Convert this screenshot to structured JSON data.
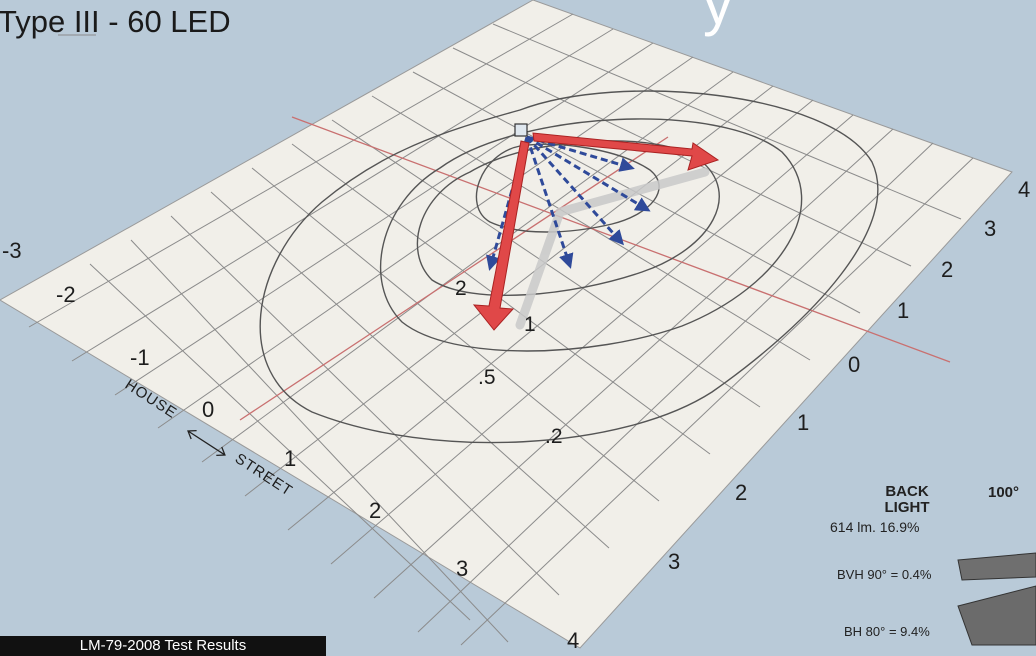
{
  "title": "Type III - 60 LED",
  "title_fragment": "y",
  "street_axis_labels": [
    "-3",
    "-2",
    "-1",
    "0",
    "1",
    "2",
    "3"
  ],
  "house_axis_labels": [
    "4",
    "3",
    "2",
    "1",
    "0",
    "1",
    "2",
    "3",
    "4"
  ],
  "direction_label": {
    "house": "HOUSE",
    "street": "STREET"
  },
  "contour_labels": [
    "2",
    "1",
    ".5",
    ".2"
  ],
  "backlight": {
    "heading_line1": "BACK",
    "heading_line2": "LIGHT",
    "angle": "100°",
    "lumens": "614 lm. 16.9%",
    "bvh": "BVH 90° = 0.4%",
    "bh": "BH 80° = 9.4%"
  },
  "footer": "LM-79-2008 Test Results",
  "colors": {
    "background": "#b9cad8",
    "grid_plane": "#f1efe9",
    "grid_line": "#8b8b8b",
    "center_line": "#c97070",
    "contour": "#555555",
    "primary_arrow": "#e04848",
    "secondary_arrow": "#2f4a9a"
  }
}
